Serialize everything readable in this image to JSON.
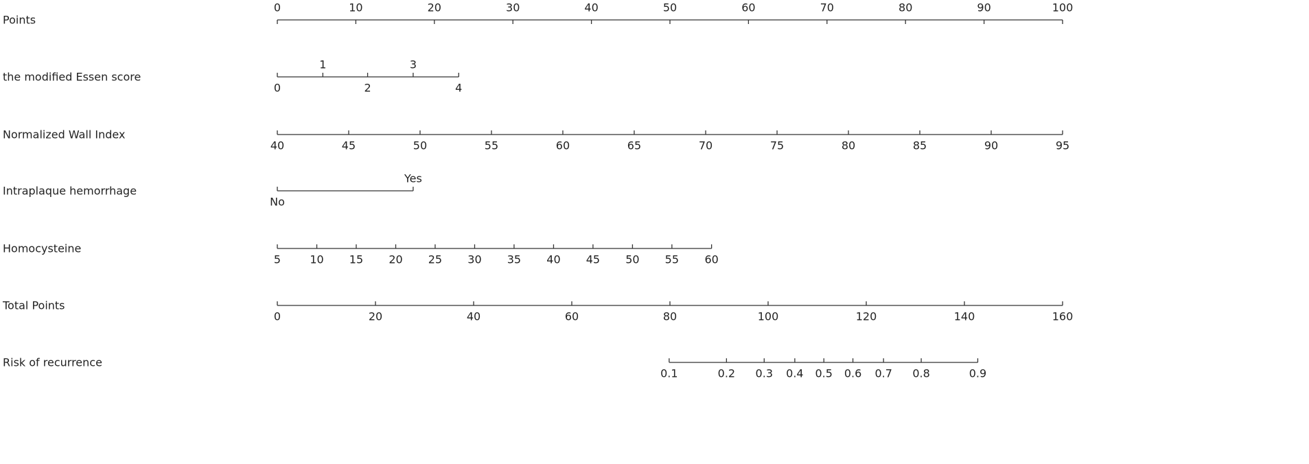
{
  "chart_data": {
    "type": "nomogram",
    "xlim": [
      0,
      100
    ],
    "rows": [
      {
        "name": "Points",
        "ticks": [
          0,
          10,
          20,
          30,
          40,
          50,
          60,
          70,
          80,
          90,
          100
        ],
        "points": [
          0,
          10,
          20,
          30,
          40,
          50,
          60,
          70,
          80,
          90,
          100
        ],
        "label_side": "above"
      },
      {
        "name": "the modified Essen score",
        "ticks": [
          0,
          1,
          2,
          3,
          4
        ],
        "points": [
          0,
          5.8,
          11.5,
          17.3,
          23.1
        ],
        "label_side": "alternate"
      },
      {
        "name": "Normalized Wall Index",
        "ticks": [
          40,
          45,
          50,
          55,
          60,
          65,
          70,
          75,
          80,
          85,
          90,
          95
        ],
        "points": [
          0,
          9.09,
          18.18,
          27.27,
          36.36,
          45.45,
          54.55,
          63.64,
          72.73,
          81.82,
          90.91,
          100
        ],
        "label_side": "below"
      },
      {
        "name": "Intraplaque hemorrhage",
        "ticks": [
          "No",
          "Yes"
        ],
        "points": [
          0,
          17.3
        ],
        "label_side": "alternate"
      },
      {
        "name": "Homocysteine",
        "ticks": [
          5,
          10,
          15,
          20,
          25,
          30,
          35,
          40,
          45,
          50,
          55,
          60
        ],
        "points": [
          0,
          5.03,
          10.05,
          15.08,
          20.1,
          25.13,
          30.15,
          35.18,
          40.2,
          45.23,
          50.25,
          55.3
        ],
        "label_side": "below"
      },
      {
        "name": "Total Points",
        "ticks": [
          0,
          20,
          40,
          60,
          80,
          100,
          120,
          140,
          160
        ],
        "points": [
          0,
          12.5,
          25,
          37.5,
          50,
          62.5,
          75,
          87.5,
          100
        ],
        "label_side": "below"
      },
      {
        "name": "Risk of recurrence",
        "ticks": [
          0.1,
          0.2,
          0.3,
          0.4,
          0.5,
          0.6,
          0.7,
          0.8,
          0.9
        ],
        "points": [
          49.9,
          57.2,
          62.0,
          65.9,
          69.6,
          73.3,
          77.2,
          82.0,
          89.2
        ],
        "label_side": "below"
      }
    ]
  }
}
